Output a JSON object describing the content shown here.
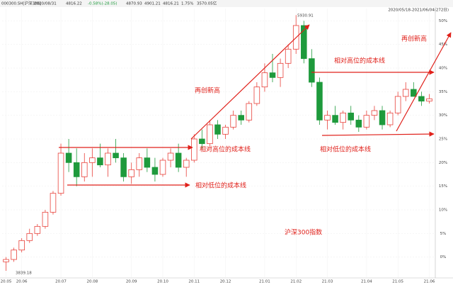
{
  "header": {
    "code": "000300.SH[沪深300]",
    "date": "2020/08/31",
    "close": 4816.22,
    "change": "-0.58%(-28.05)",
    "open": 4870.93,
    "high": 4901.21,
    "low": 4816.21,
    "turnover": "1.75%",
    "amount": "3570.05亿",
    "range": "2020/05/18-2021/06/04(272日)"
  },
  "chart_data": {
    "type": "candlestick",
    "categories": [
      "20.05",
      null,
      "20.06",
      null,
      null,
      null,
      null,
      "20.07",
      null,
      null,
      null,
      "20.08",
      null,
      null,
      null,
      null,
      "20.09",
      null,
      null,
      null,
      "20.10",
      null,
      null,
      null,
      "20.11",
      null,
      null,
      null,
      "20.12",
      null,
      null,
      null,
      null,
      "21.01",
      null,
      null,
      null,
      "21.02",
      null,
      null,
      null,
      "21.03",
      null,
      null,
      null,
      null,
      "21.04",
      null,
      null,
      null,
      "21.05",
      null,
      null,
      null,
      "21.06"
    ],
    "open": [
      -1,
      -0.5,
      1.5,
      3.5,
      5,
      6.5,
      9.5,
      13.5,
      22,
      20,
      17,
      20,
      21,
      19.5,
      22,
      21,
      17,
      18.5,
      21,
      19,
      17.5,
      20.5,
      22,
      19,
      20.5,
      25,
      24,
      28,
      26,
      27.5,
      30,
      29,
      32.5,
      36,
      39,
      38,
      41,
      44,
      49,
      42,
      37,
      29,
      30,
      28.5,
      30.5,
      29,
      27.5,
      30,
      31,
      28,
      30.5,
      34,
      35.5,
      34,
      33
    ],
    "high": [
      0,
      2,
      4,
      6,
      7,
      10,
      14,
      24,
      25,
      23,
      22,
      23,
      24,
      23,
      25,
      22,
      20,
      22,
      23,
      21,
      21,
      23,
      24,
      21,
      26,
      27,
      29,
      29,
      28,
      31,
      31,
      33,
      37,
      41,
      43,
      42,
      45,
      51.2,
      50,
      44,
      38,
      31,
      32,
      31,
      32,
      30,
      31,
      32,
      32,
      31,
      35,
      37,
      37,
      35,
      34.5
    ],
    "low": [
      -2.9,
      -1,
      1,
      3,
      4.5,
      6,
      9,
      13,
      18,
      15,
      16,
      17,
      19,
      17,
      20,
      16,
      15.5,
      17,
      18,
      16,
      17,
      19,
      18,
      17,
      20,
      23,
      23,
      25,
      25,
      27,
      28,
      28.5,
      32,
      35,
      37,
      36,
      40,
      43,
      41,
      36,
      28,
      27,
      28,
      27,
      28,
      26.5,
      27,
      29,
      27,
      27.5,
      30,
      33,
      34,
      32,
      32.5
    ],
    "close": [
      -0.5,
      1.5,
      3.5,
      5,
      6.5,
      9.5,
      13.5,
      22,
      20,
      17,
      20,
      21,
      19.5,
      22,
      21,
      17,
      18.5,
      21,
      19,
      17.5,
      20.5,
      22,
      19,
      20.5,
      25,
      24,
      28,
      26,
      27.5,
      30,
      29,
      32.5,
      36,
      39,
      38,
      41,
      44,
      49,
      42,
      37,
      29,
      30,
      28.5,
      30.5,
      29,
      27.5,
      30,
      31,
      28,
      30.5,
      34,
      35.5,
      34,
      33,
      33.5
    ],
    "up_color": "#e8413a",
    "down_color": "#1e9a3c",
    "ylim": [
      -4.4,
      52.6
    ],
    "yticks": [
      {
        "value": 0,
        "label": "0%"
      },
      {
        "value": 5,
        "label": "5%"
      },
      {
        "value": 10,
        "label": "10%"
      },
      {
        "value": 15,
        "label": "15%"
      },
      {
        "value": 20,
        "label": "20%"
      },
      {
        "value": 25,
        "label": "25%"
      },
      {
        "value": 30,
        "label": "30%"
      },
      {
        "value": 35,
        "label": "35%"
      },
      {
        "value": 40,
        "label": "40%"
      },
      {
        "value": 45,
        "label": "45%"
      },
      {
        "value": 50,
        "label": "50%"
      }
    ],
    "grid": true,
    "low_label": 3839.18,
    "high_label": 5930.91,
    "annotations": [
      "再创新高",
      "相对高位的成本线",
      "相对低位的成本线",
      "再创新高",
      "相对高位的成本线",
      "相对低位的成本线",
      "沪深300指数"
    ]
  }
}
